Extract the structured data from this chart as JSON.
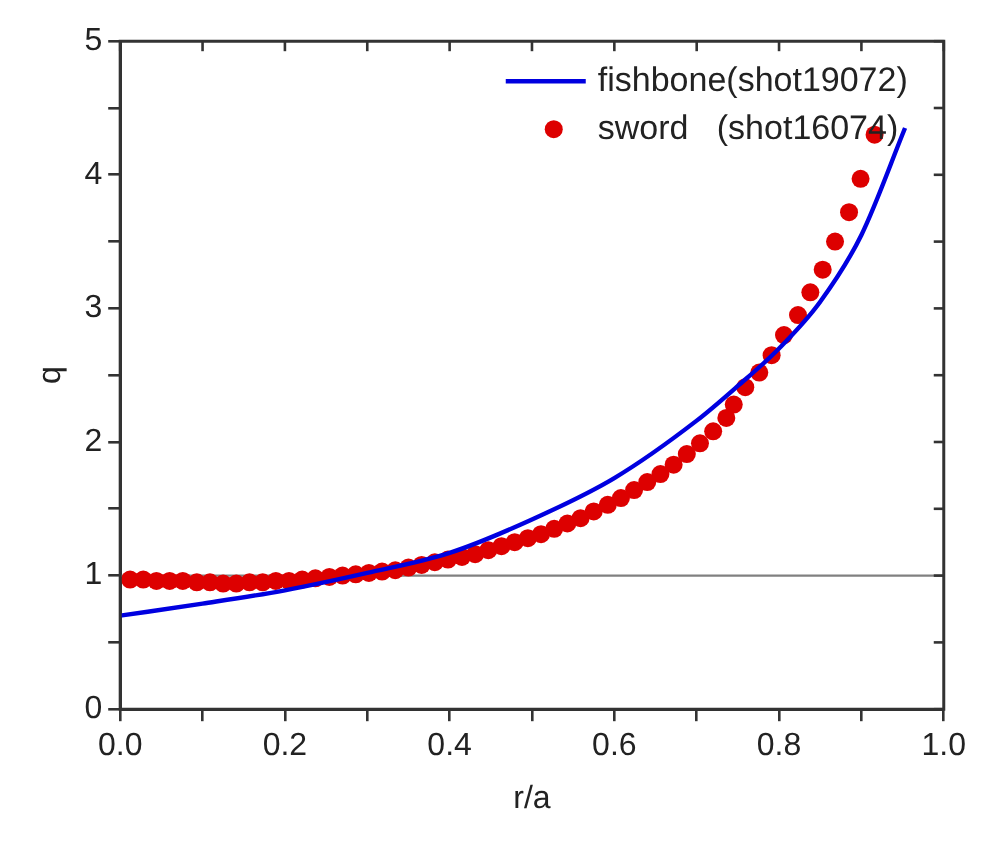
{
  "chart_data": {
    "type": "line",
    "xlabel": "r/a",
    "ylabel": "q",
    "xlim": [
      0,
      1
    ],
    "xticks": [
      {
        "value": 0,
        "label": "0.0"
      },
      {
        "value": 0.1,
        "label": null
      },
      0.2,
      {
        "value": 0.3,
        "label": null
      },
      0.4,
      {
        "value": 0.5,
        "label": null
      },
      0.6,
      {
        "value": 0.7,
        "label": null
      },
      0.8,
      {
        "value": 0.9,
        "label": null
      },
      {
        "value": 1,
        "label": "1.0"
      }
    ],
    "ylim": [
      0,
      5
    ],
    "yticks": [
      0,
      {
        "value": 0.5,
        "label": null
      },
      1,
      {
        "value": 1.5,
        "label": null
      },
      2,
      {
        "value": 2.5,
        "label": null
      },
      3,
      {
        "value": 3.5,
        "label": null
      },
      4,
      {
        "value": 4.5,
        "label": null
      },
      5
    ],
    "series": [
      {
        "name": "fishbone(shot19072)",
        "color": "#0000e0",
        "marker": "none",
        "x": [
          0,
          0.1,
          0.2,
          0.3,
          0.4,
          0.5,
          0.6,
          0.7,
          0.75,
          0.8,
          0.85,
          0.9,
          0.953
        ],
        "values": [
          0.7,
          0.79,
          0.89,
          1.02,
          1.17,
          1.42,
          1.73,
          2.16,
          2.42,
          2.7,
          3.05,
          3.55,
          4.35
        ]
      },
      {
        "name": "sword   (shot16074)",
        "type": "scatter",
        "color": "#dd0000",
        "marker": "circle",
        "x": [
          0.012,
          0.028,
          0.044,
          0.06,
          0.076,
          0.093,
          0.109,
          0.125,
          0.141,
          0.157,
          0.173,
          0.189,
          0.205,
          0.221,
          0.237,
          0.254,
          0.27,
          0.286,
          0.302,
          0.318,
          0.334,
          0.35,
          0.366,
          0.382,
          0.398,
          0.415,
          0.431,
          0.447,
          0.463,
          0.479,
          0.495,
          0.511,
          0.527,
          0.543,
          0.559,
          0.575,
          0.592,
          0.608,
          0.624,
          0.64,
          0.656,
          0.672,
          0.688,
          0.704,
          0.72,
          0.736,
          0.745,
          0.759,
          0.776,
          0.791,
          0.806,
          0.823,
          0.838,
          0.853,
          0.868,
          0.885,
          0.899,
          0.916
        ],
        "values": [
          0.97,
          0.97,
          0.96,
          0.96,
          0.96,
          0.95,
          0.95,
          0.94,
          0.94,
          0.95,
          0.95,
          0.96,
          0.96,
          0.97,
          0.98,
          0.99,
          1.0,
          1.01,
          1.02,
          1.03,
          1.04,
          1.06,
          1.08,
          1.1,
          1.12,
          1.14,
          1.16,
          1.19,
          1.22,
          1.25,
          1.28,
          1.31,
          1.35,
          1.39,
          1.43,
          1.48,
          1.53,
          1.58,
          1.64,
          1.7,
          1.76,
          1.83,
          1.91,
          1.99,
          2.08,
          2.18,
          2.28,
          2.41,
          2.52,
          2.65,
          2.8,
          2.95,
          3.12,
          3.29,
          3.5,
          3.72,
          3.97,
          4.3
        ]
      }
    ],
    "ref_lines": [
      {
        "axis": "y",
        "value": 1,
        "color": "#808080"
      }
    ],
    "grid": false,
    "legend": "top right"
  }
}
